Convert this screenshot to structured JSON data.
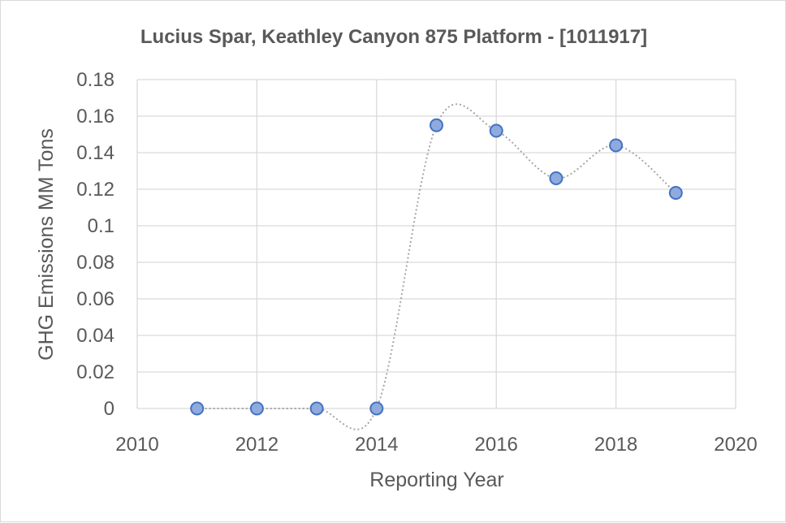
{
  "chart_data": {
    "type": "scatter",
    "title": "Lucius Spar, Keathley Canyon 875 Platform - [1011917]",
    "xlabel": "Reporting Year",
    "ylabel": "GHG Emissions MM Tons",
    "xlim": [
      2010,
      2020
    ],
    "ylim": [
      0,
      0.18
    ],
    "x_ticks": [
      "2010",
      "2012",
      "2014",
      "2016",
      "2018",
      "2020"
    ],
    "y_ticks": [
      "0",
      "0.02",
      "0.04",
      "0.06",
      "0.08",
      "0.1",
      "0.12",
      "0.14",
      "0.16",
      "0.18"
    ],
    "grid": true,
    "trendline": "smoothed dotted",
    "marker_fill": "#8faadc",
    "marker_edge": "#4472c4",
    "trendline_color": "#a6a6a6",
    "series": [
      {
        "x": [
          2011,
          2012,
          2013,
          2014,
          2015,
          2016,
          2017,
          2018,
          2019
        ],
        "y": [
          0,
          0,
          0,
          0,
          0.155,
          0.152,
          0.126,
          0.144,
          0.118
        ]
      }
    ]
  }
}
